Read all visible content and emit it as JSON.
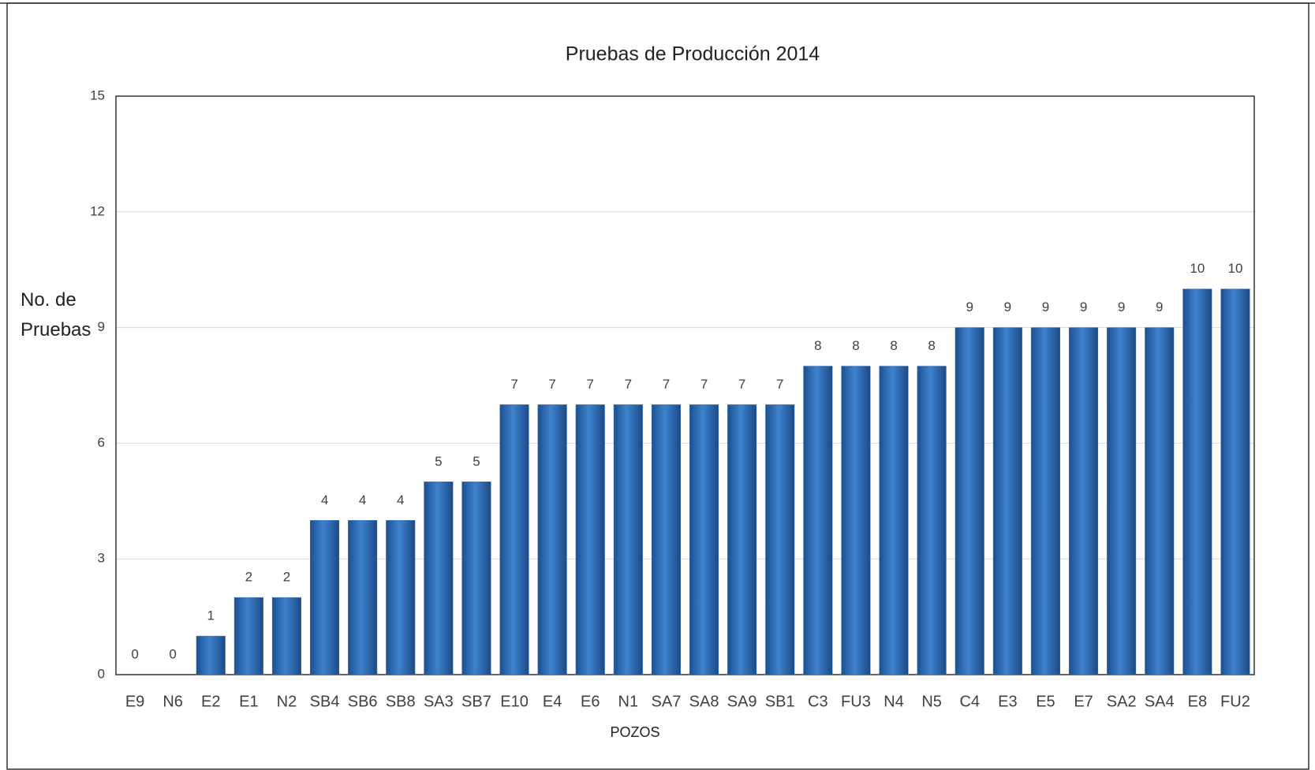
{
  "chart_data": {
    "type": "bar",
    "title": "Pruebas de Producción 2014",
    "x_label": "POZOS",
    "y_label": "No. de Pruebas",
    "categories": [
      "E9",
      "N6",
      "E2",
      "E1",
      "N2",
      "SB4",
      "SB6",
      "SB8",
      "SA3",
      "SB7",
      "E10",
      "E4",
      "E6",
      "N1",
      "SA7",
      "SA8",
      "SA9",
      "SB1",
      "C3",
      "FU3",
      "N4",
      "N5",
      "C4",
      "E3",
      "E5",
      "E7",
      "SA2",
      "SA4",
      "E8",
      "FU2"
    ],
    "values": [
      0,
      0,
      1,
      2,
      2,
      4,
      4,
      4,
      5,
      5,
      7,
      7,
      7,
      7,
      7,
      7,
      7,
      7,
      8,
      8,
      8,
      8,
      9,
      9,
      9,
      9,
      9,
      9,
      10,
      10
    ],
    "color": "#2f6fba",
    "ylim": [
      0,
      15
    ],
    "yticks": [
      0,
      3,
      6,
      9,
      12,
      15
    ],
    "grid": true
  }
}
